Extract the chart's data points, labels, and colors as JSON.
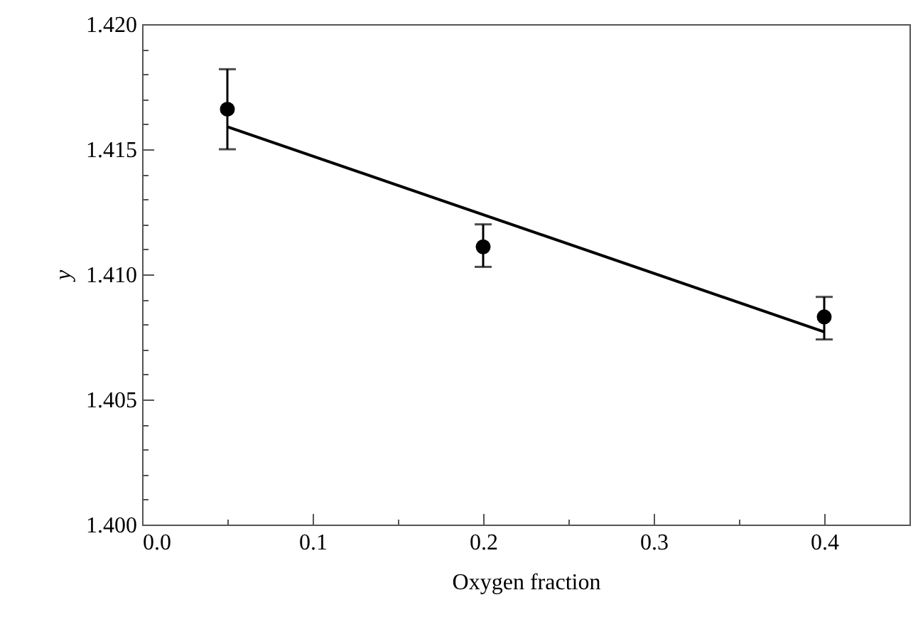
{
  "chart_data": {
    "type": "scatter",
    "xlabel": "Oxygen fraction",
    "ylabel": "y",
    "xlim": [
      0,
      0.45
    ],
    "ylim": [
      1.4,
      1.42
    ],
    "xticks": [
      {
        "value": 0,
        "label": "0.0"
      },
      {
        "value": 0.05,
        "label": null
      },
      0.1,
      {
        "value": 0.15,
        "label": null
      },
      0.2,
      {
        "value": 0.25,
        "label": null
      },
      0.3,
      {
        "value": 0.35,
        "label": null
      },
      0.4
    ],
    "yticks": [
      {
        "value": 1.4,
        "label": "1.400"
      },
      {
        "value": 1.401,
        "label": null
      },
      {
        "value": 1.402,
        "label": null
      },
      {
        "value": 1.403,
        "label": null
      },
      {
        "value": 1.404,
        "label": null
      },
      {
        "value": 1.405,
        "label": "1.405"
      },
      {
        "value": 1.406,
        "label": null
      },
      {
        "value": 1.407,
        "label": null
      },
      {
        "value": 1.408,
        "label": null
      },
      {
        "value": 1.409,
        "label": null
      },
      {
        "value": 1.41,
        "label": "1.410"
      },
      {
        "value": 1.411,
        "label": null
      },
      {
        "value": 1.412,
        "label": null
      },
      {
        "value": 1.413,
        "label": null
      },
      {
        "value": 1.414,
        "label": null
      },
      {
        "value": 1.415,
        "label": "1.415"
      },
      {
        "value": 1.416,
        "label": null
      },
      {
        "value": 1.417,
        "label": null
      },
      {
        "value": 1.418,
        "label": null
      },
      {
        "value": 1.419,
        "label": null
      },
      {
        "value": 1.42,
        "label": "1.420"
      }
    ],
    "grid": false,
    "series": [
      {
        "marker": "circle",
        "color": "#000000",
        "x": [
          0.05,
          0.2,
          0.4
        ],
        "values": [
          1.4166,
          1.4111,
          1.4083
        ],
        "errors": [
          [
            1.415,
            1.4182
          ],
          [
            1.4103,
            1.412
          ],
          [
            1.4074,
            1.4091
          ]
        ]
      },
      {
        "type": "line",
        "color": "#000000",
        "line_style": "solid",
        "x": [
          0.05,
          0.4
        ],
        "values": [
          1.4159,
          1.4077
        ]
      }
    ]
  }
}
